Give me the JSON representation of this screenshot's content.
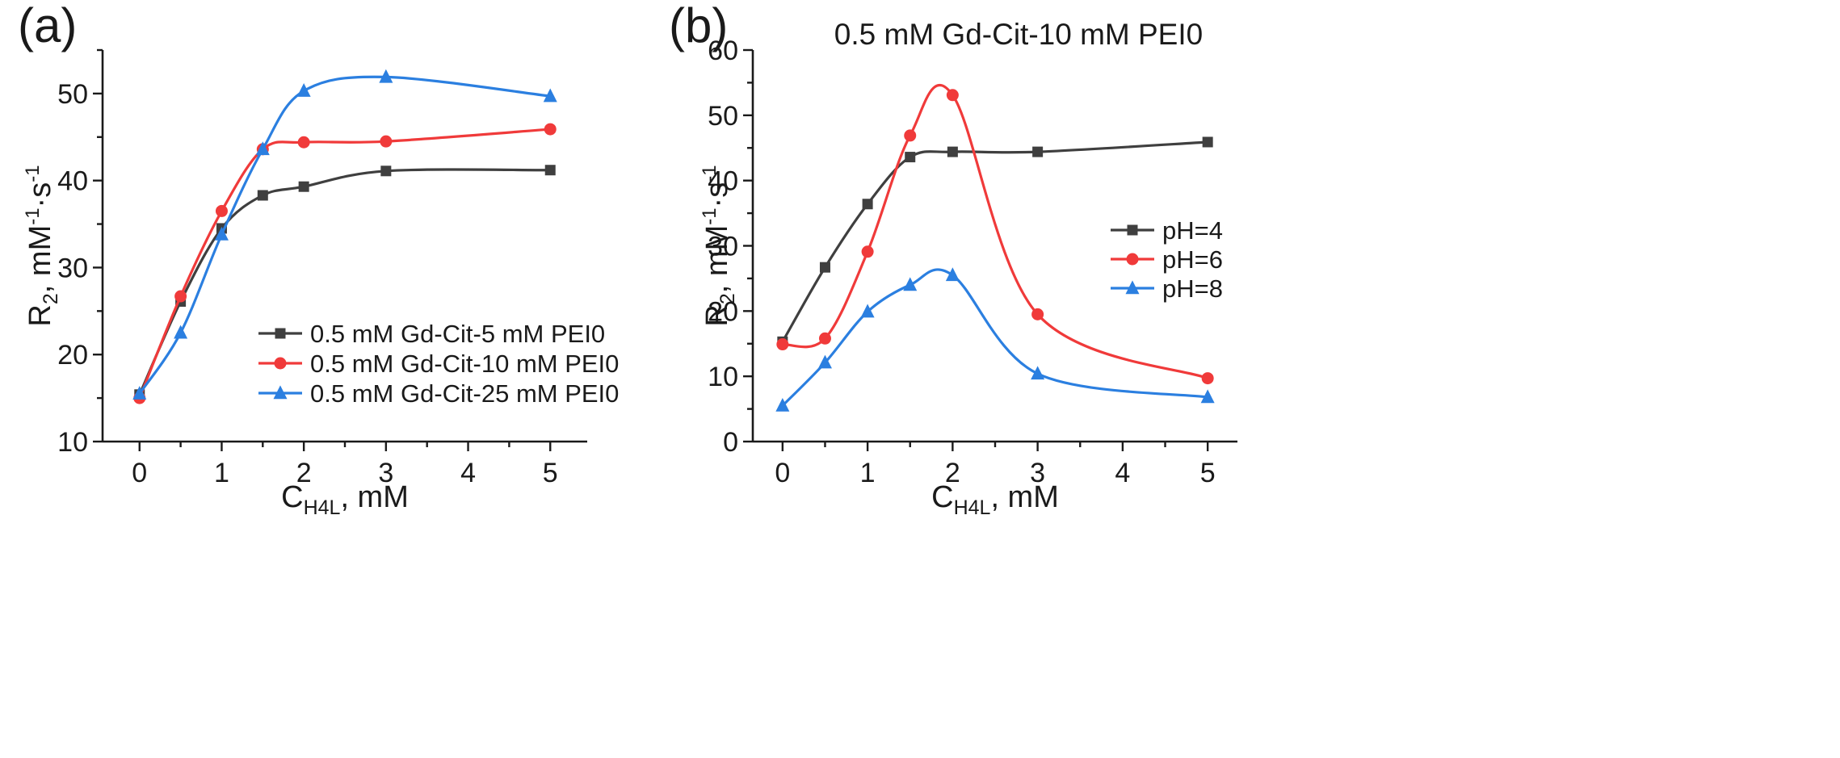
{
  "chart_data": [
    {
      "type": "line",
      "panel_label": "(a)",
      "title": "",
      "xlabel": {
        "main": "C",
        "sub": "H4L",
        "suffix": ", mM"
      },
      "ylabel": {
        "main": "R",
        "sub": "2",
        "mid": ", mM",
        "sup1": "-1",
        "dot": "·s",
        "sup2": "-1"
      },
      "xlim": [
        -0.45,
        5.45
      ],
      "ylim": [
        10,
        55
      ],
      "xticks": [
        0,
        1,
        2,
        3,
        4,
        5
      ],
      "yticks": [
        10,
        20,
        30,
        40,
        50
      ],
      "grid": false,
      "legend_position": "center-right",
      "series": [
        {
          "name": "0.5 mM Gd-Cit-5 mM PEI0",
          "color": "#3f3f3f",
          "marker": "square",
          "x": [
            0,
            0.5,
            1,
            1.5,
            2,
            3,
            5
          ],
          "y": [
            15.4,
            26.1,
            34.5,
            38.3,
            39.3,
            41.1,
            41.2
          ]
        },
        {
          "name": "0.5 mM Gd-Cit-10 mM PEI0",
          "color": "#f03a3a",
          "marker": "circle",
          "x": [
            0,
            0.5,
            1,
            1.5,
            2,
            3,
            5
          ],
          "y": [
            15.0,
            26.7,
            36.5,
            43.6,
            44.4,
            44.5,
            45.9
          ]
        },
        {
          "name": "0.5 mM Gd-Cit-25 mM PEI0",
          "color": "#2b7fe0",
          "marker": "triangle",
          "x": [
            0,
            0.5,
            1,
            1.5,
            2,
            3,
            5
          ],
          "y": [
            15.5,
            22.5,
            33.8,
            43.6,
            50.3,
            51.9,
            49.7
          ]
        }
      ]
    },
    {
      "type": "line",
      "panel_label": "(b)",
      "title": "0.5 mM Gd-Cit-10 mM PEI0",
      "xlabel": {
        "main": "C",
        "sub": "H4L",
        "suffix": ", mM"
      },
      "ylabel": {
        "main": "R",
        "sub": "2",
        "mid": ", mM",
        "sup1": "-1",
        "dot": "·s",
        "sup2": "-1"
      },
      "xlim": [
        -0.35,
        5.35
      ],
      "ylim": [
        0,
        60
      ],
      "xticks": [
        0,
        1,
        2,
        3,
        4,
        5
      ],
      "yticks": [
        0,
        10,
        20,
        30,
        40,
        50,
        60
      ],
      "grid": false,
      "legend_position": "right",
      "series": [
        {
          "name": "pH=4",
          "color": "#3f3f3f",
          "marker": "square",
          "x": [
            0,
            0.5,
            1,
            1.5,
            2,
            3,
            5
          ],
          "y": [
            15.3,
            26.7,
            36.4,
            43.6,
            44.4,
            44.4,
            45.9
          ]
        },
        {
          "name": "pH=6",
          "color": "#f03a3a",
          "marker": "circle",
          "x": [
            0,
            0.5,
            1,
            1.5,
            2,
            3,
            5
          ],
          "y": [
            14.9,
            15.8,
            29.1,
            46.9,
            53.1,
            19.5,
            9.7
          ]
        },
        {
          "name": "pH=8",
          "color": "#2b7fe0",
          "marker": "triangle",
          "x": [
            0,
            0.5,
            1,
            1.5,
            2,
            3,
            5
          ],
          "y": [
            5.5,
            12.1,
            19.9,
            24.0,
            25.5,
            10.4,
            6.8
          ]
        }
      ]
    }
  ]
}
